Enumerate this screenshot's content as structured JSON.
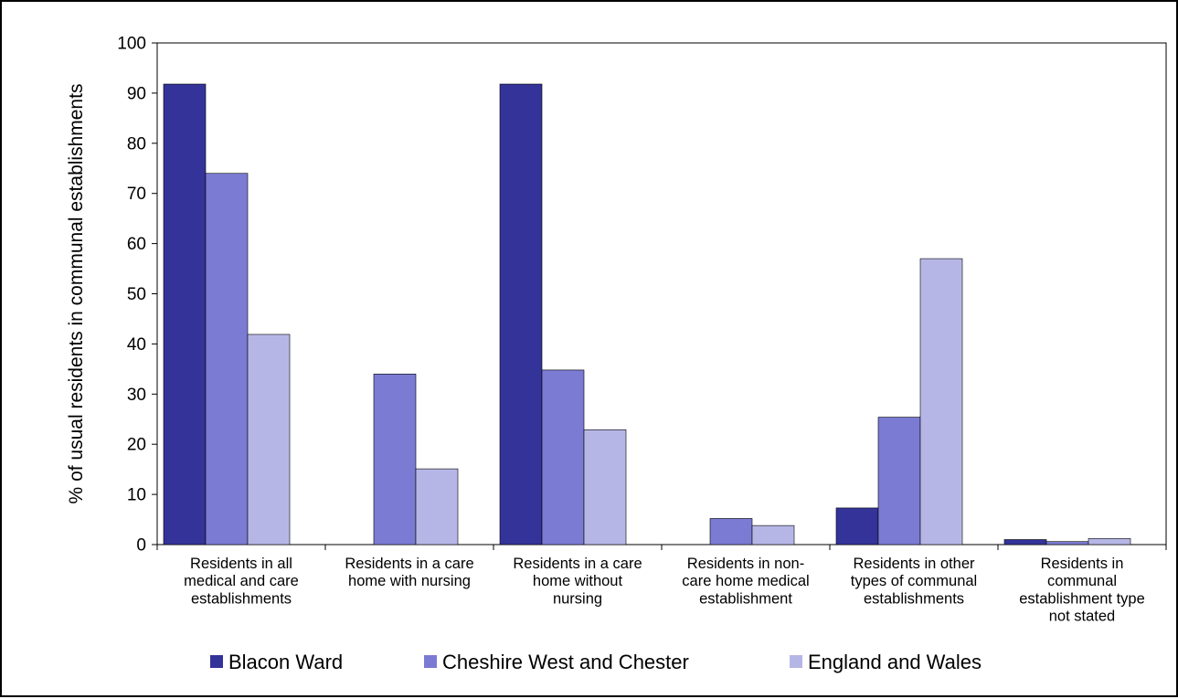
{
  "chart_data": {
    "type": "bar",
    "title": "",
    "xlabel": "",
    "ylabel": "% of usual residents in communal establishments",
    "ylim": [
      0,
      100
    ],
    "yticks": [
      0,
      10,
      20,
      30,
      40,
      50,
      60,
      70,
      80,
      90,
      100
    ],
    "grid": false,
    "legend_position": "bottom",
    "categories": [
      [
        "Residents in all",
        "medical and care",
        "establishments"
      ],
      [
        "Residents in a care",
        "home with nursing"
      ],
      [
        "Residents in a care",
        "home without",
        "nursing"
      ],
      [
        "Residents in non-",
        "care home medical",
        "establishment"
      ],
      [
        "Residents in other",
        "types of communal",
        "establishments"
      ],
      [
        "Residents in",
        "communal",
        "establishment type",
        "not stated"
      ]
    ],
    "series": [
      {
        "name": "Blacon Ward",
        "color": "#333399",
        "values": [
          91.8,
          0,
          91.8,
          0,
          7.3,
          1.0
        ]
      },
      {
        "name": "Cheshire West and Chester",
        "color": "#7b7bd4",
        "values": [
          74.0,
          34.0,
          34.8,
          5.2,
          25.4,
          0.6
        ]
      },
      {
        "name": "England and Wales",
        "color": "#b6b6e6",
        "values": [
          41.9,
          15.1,
          22.9,
          3.8,
          57.0,
          1.2
        ]
      }
    ]
  }
}
